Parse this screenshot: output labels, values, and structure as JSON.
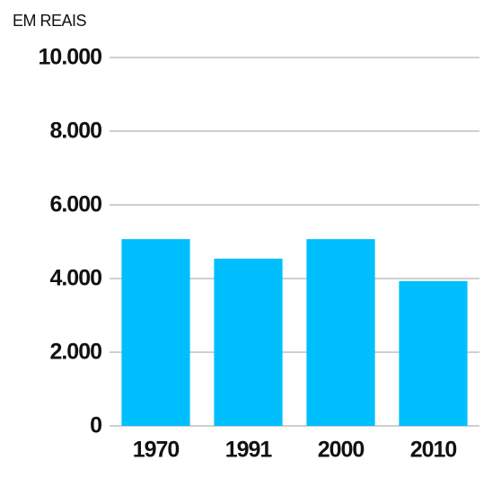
{
  "chart_data": {
    "type": "bar",
    "y_label": "EM REAIS",
    "categories": [
      "1970",
      "1991",
      "2000",
      "2010"
    ],
    "values": [
      5070,
      4540,
      5070,
      3930
    ],
    "color": "#00bfff",
    "ylim": [
      0,
      10000
    ],
    "yticks": [
      0,
      {
        "value": 2000,
        "label": "2.000"
      },
      {
        "value": 4000,
        "label": "4.000"
      },
      {
        "value": 6000,
        "label": "6.000"
      },
      {
        "value": 8000,
        "label": "8.000"
      },
      {
        "value": 10000,
        "label": "10.000"
      }
    ],
    "grid": true
  }
}
